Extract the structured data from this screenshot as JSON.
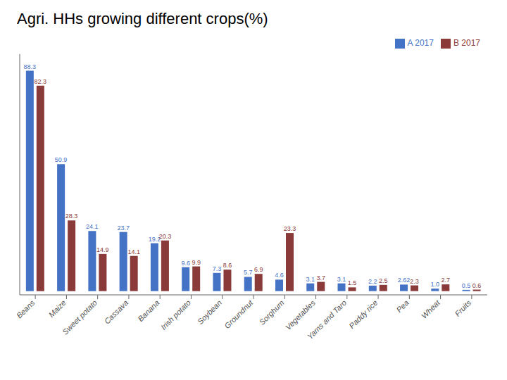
{
  "chart_data": {
    "type": "bar",
    "title": "Agri. HHs growing different crops(%)",
    "categories": [
      "Beans",
      "Maize",
      "Sweet potato",
      "Cassava",
      "Banana",
      "Irish potato",
      "Soybean",
      "Groundnut",
      "Sorghum",
      "Vegetables",
      "Yams and Taro",
      "Paddy rice",
      "Pea",
      "Wheat",
      "Fruits"
    ],
    "series": [
      {
        "name": "A 2017",
        "color": "#4472C4",
        "values": [
          88.3,
          50.9,
          24.1,
          23.7,
          19.2,
          9.6,
          7.3,
          5.7,
          4.6,
          3.1,
          3.1,
          2.2,
          2.62,
          1.0,
          0.5
        ],
        "value_labels": [
          "88.3",
          "50.9",
          "24.1",
          "23.7",
          "19.2",
          "9.6",
          "7.3",
          "5.7",
          "4.6",
          "3.1",
          "3.1",
          "2.2",
          "2.62",
          "1.0",
          "0.5"
        ]
      },
      {
        "name": "B 2017",
        "color": "#8B3A3A",
        "values": [
          82.3,
          28.3,
          14.9,
          14.1,
          20.3,
          9.9,
          8.6,
          6.9,
          23.3,
          3.7,
          1.5,
          2.5,
          2.3,
          2.7,
          0.6
        ]
      }
    ],
    "ylim": [
      -1.5,
      95
    ],
    "grid": false,
    "legend": "upper right",
    "data_labels": true,
    "tick_labels": "x"
  }
}
